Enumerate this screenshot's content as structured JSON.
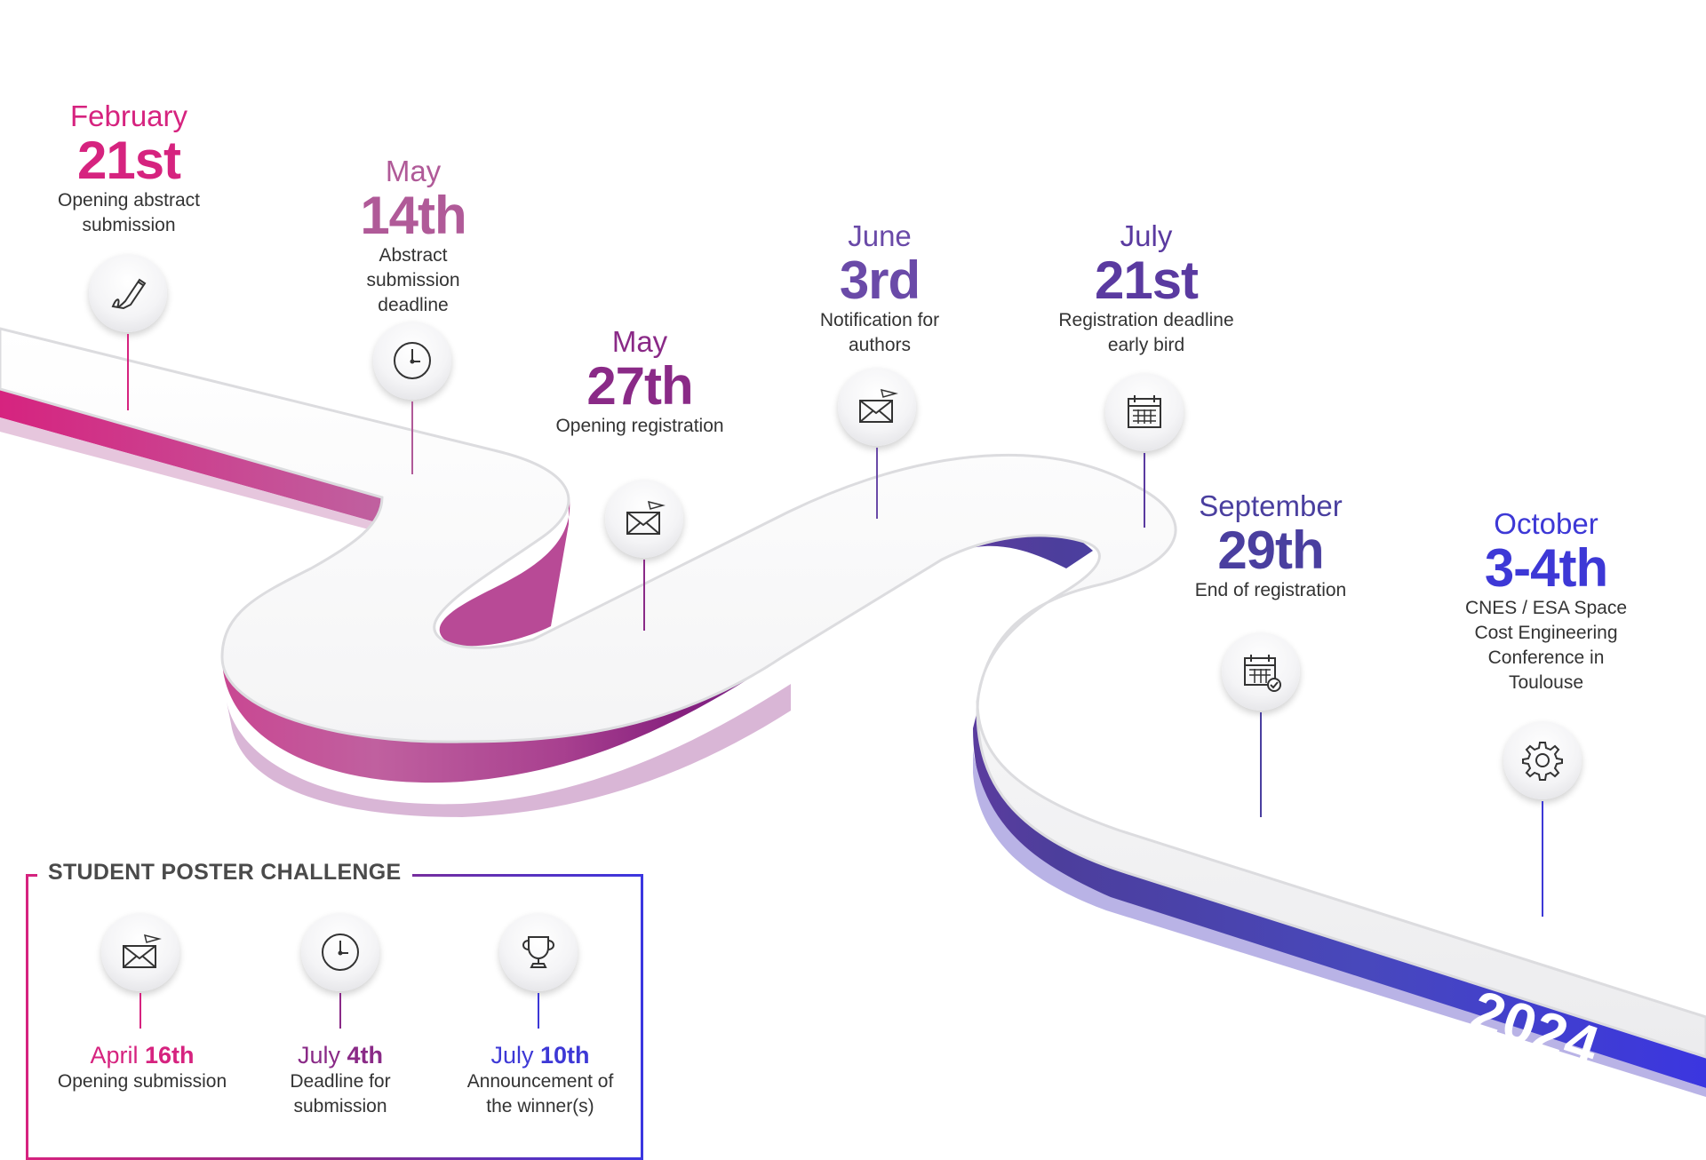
{
  "colors": {
    "magenta": "#d6237f",
    "mauve": "#b05a98",
    "purple": "#8a2a87",
    "violet": "#6a4aa8",
    "indigo": "#4a3f9f",
    "blue": "#3d38d6"
  },
  "milestones": [
    {
      "month": "February",
      "day": "21st",
      "desc": [
        "Opening abstract",
        "submission"
      ],
      "icon": "pen-icon"
    },
    {
      "month": "May",
      "day": "14th",
      "desc": [
        "Abstract",
        "submission",
        "deadline"
      ],
      "icon": "clock-icon"
    },
    {
      "month": "May",
      "day": "27th",
      "desc": [
        "Opening registration"
      ],
      "icon": "envelope-icon"
    },
    {
      "month": "June",
      "day": "3rd",
      "desc": [
        "Notification for",
        "authors"
      ],
      "icon": "envelope-icon"
    },
    {
      "month": "July",
      "day": "21st",
      "desc": [
        "Registration deadline",
        "early bird"
      ],
      "icon": "calendar-icon"
    },
    {
      "month": "September",
      "day": "29th",
      "desc": [
        "End of registration"
      ],
      "icon": "calendar-check-icon"
    },
    {
      "month": "October",
      "day": "3-4th",
      "desc": [
        "CNES / ESA Space",
        "Cost Engineering",
        "Conference in",
        "Toulouse"
      ],
      "icon": "gear-icon"
    }
  ],
  "year": "2024",
  "student_challenge": {
    "title": "STUDENT POSTER CHALLENGE",
    "items": [
      {
        "month": "April",
        "day": "16th",
        "desc": [
          "Opening submission"
        ],
        "icon": "envelope-icon"
      },
      {
        "month": "July",
        "day": "4th",
        "desc": [
          "Deadline for",
          "submission"
        ],
        "icon": "clock-icon"
      },
      {
        "month": "July",
        "day": "10th",
        "desc": [
          "Announcement of",
          "the winner(s)"
        ],
        "icon": "trophy-icon"
      }
    ]
  }
}
